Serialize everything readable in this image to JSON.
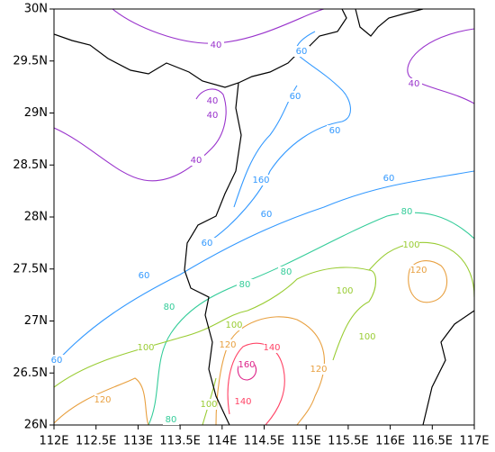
{
  "map": {
    "lat_labels": [
      "30N",
      "29.5N",
      "29N",
      "28.5N",
      "28N",
      "27.5N",
      "27N",
      "26.5N",
      "26N"
    ],
    "lon_labels": [
      "112E",
      "112.5E",
      "113E",
      "113.5E",
      "114E",
      "114.5E",
      "115E",
      "115.5E",
      "116E",
      "116.5E",
      "117E"
    ],
    "contour_labels": [
      40,
      40,
      40,
      40,
      40,
      60,
      60,
      60,
      60,
      60,
      60,
      60,
      60,
      80,
      80,
      80,
      80,
      80,
      100,
      100,
      100,
      100,
      100,
      100,
      120,
      120,
      120,
      120,
      140,
      140,
      160,
      160
    ]
  }
}
